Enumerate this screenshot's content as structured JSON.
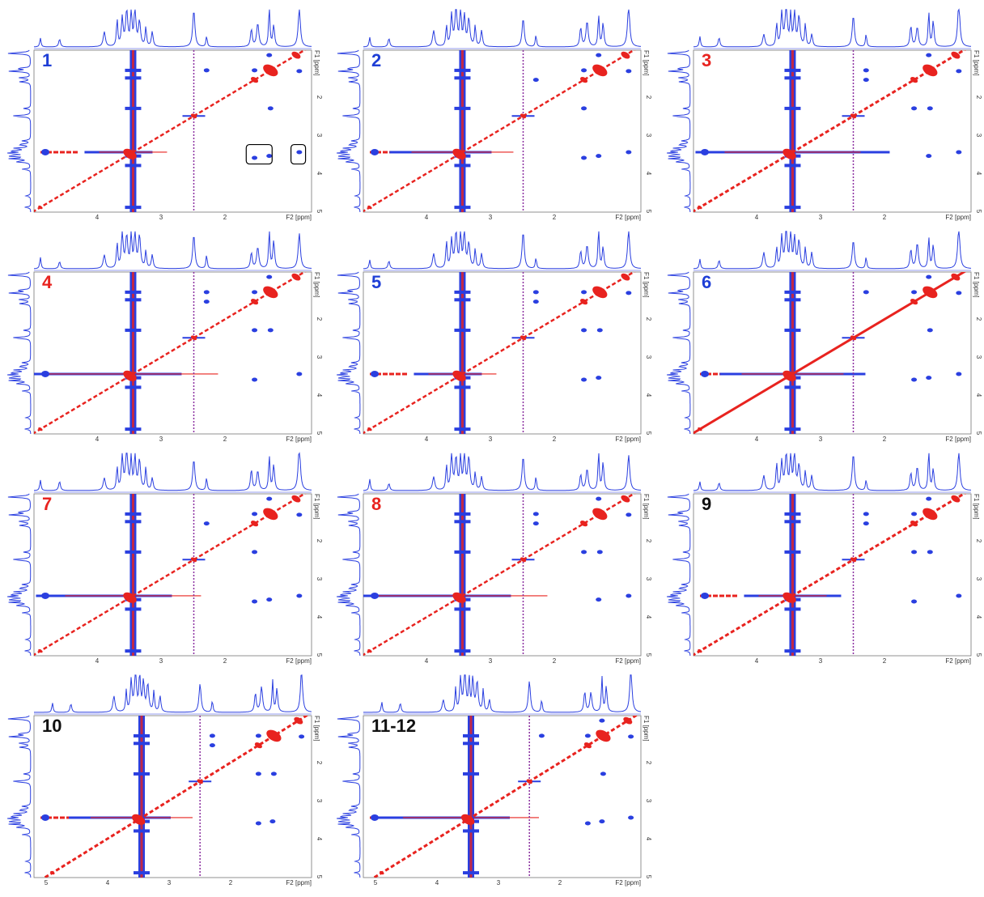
{
  "panels": [
    {
      "label": "1",
      "label_color": "#1f3fd6",
      "x_ticks": [
        "4",
        "3",
        "2"
      ],
      "x_axis_label": "F2 [ppm]",
      "y_ticks": [
        "2",
        "3",
        "4",
        "5"
      ],
      "y_axis_label": "F1 [ppm]"
    },
    {
      "label": "2",
      "label_color": "#1f3fd6",
      "x_ticks": [
        "4",
        "3",
        "2"
      ],
      "x_axis_label": "F2 [ppm]",
      "y_ticks": [
        "2",
        "3",
        "4",
        "5"
      ],
      "y_axis_label": "F1 [ppm]"
    },
    {
      "label": "3",
      "label_color": "#e8231f",
      "x_ticks": [
        "4",
        "3",
        "2"
      ],
      "x_axis_label": "F2 [ppm]",
      "y_ticks": [
        "2",
        "3",
        "4",
        "5"
      ],
      "y_axis_label": "F1 [ppm]"
    },
    {
      "label": "4",
      "label_color": "#e8231f",
      "x_ticks": [
        "4",
        "3",
        "2"
      ],
      "x_axis_label": "F2 [ppm]",
      "y_ticks": [
        "2",
        "3",
        "4",
        "5"
      ],
      "y_axis_label": "F1 [ppm]"
    },
    {
      "label": "5",
      "label_color": "#1f3fd6",
      "x_ticks": [
        "4",
        "3",
        "2"
      ],
      "x_axis_label": "F2 [ppm]",
      "y_ticks": [
        "2",
        "3",
        "4",
        "5"
      ],
      "y_axis_label": "F1 [ppm]"
    },
    {
      "label": "6",
      "label_color": "#1f3fd6",
      "x_ticks": [
        "4",
        "3",
        "2"
      ],
      "x_axis_label": "F2 [ppm]",
      "y_ticks": [
        "2",
        "3",
        "4",
        "5"
      ],
      "y_axis_label": "F1 [ppm]"
    },
    {
      "label": "7",
      "label_color": "#e8231f",
      "x_ticks": [
        "4",
        "3",
        "2"
      ],
      "x_axis_label": "F2 [ppm]",
      "y_ticks": [
        "2",
        "3",
        "4",
        "5"
      ],
      "y_axis_label": "F1 [ppm]"
    },
    {
      "label": "8",
      "label_color": "#e8231f",
      "x_ticks": [
        "4",
        "3",
        "2"
      ],
      "x_axis_label": "F2 [ppm]",
      "y_ticks": [
        "2",
        "3",
        "4",
        "5"
      ],
      "y_axis_label": "F1 [ppm]"
    },
    {
      "label": "9",
      "label_color": "#111111",
      "x_ticks": [
        "4",
        "3",
        "2"
      ],
      "x_axis_label": "F2 [ppm]",
      "y_ticks": [
        "2",
        "3",
        "4",
        "5"
      ],
      "y_axis_label": "F1 [ppm]"
    },
    {
      "label": "10",
      "label_color": "#111111",
      "x_ticks": [
        "5",
        "4",
        "3",
        "2"
      ],
      "x_axis_label": "F2 [ppm]",
      "y_ticks": [
        "2",
        "3",
        "4",
        "5"
      ],
      "y_axis_label": "F1 [ppm]"
    },
    {
      "label": "11-12",
      "label_color": "#111111",
      "x_ticks": [
        "5",
        "4",
        "3",
        "2"
      ],
      "x_axis_label": "F2 [ppm]",
      "y_ticks": [
        "2",
        "3",
        "4",
        "5"
      ],
      "y_axis_label": "F1 [ppm]"
    }
  ]
}
